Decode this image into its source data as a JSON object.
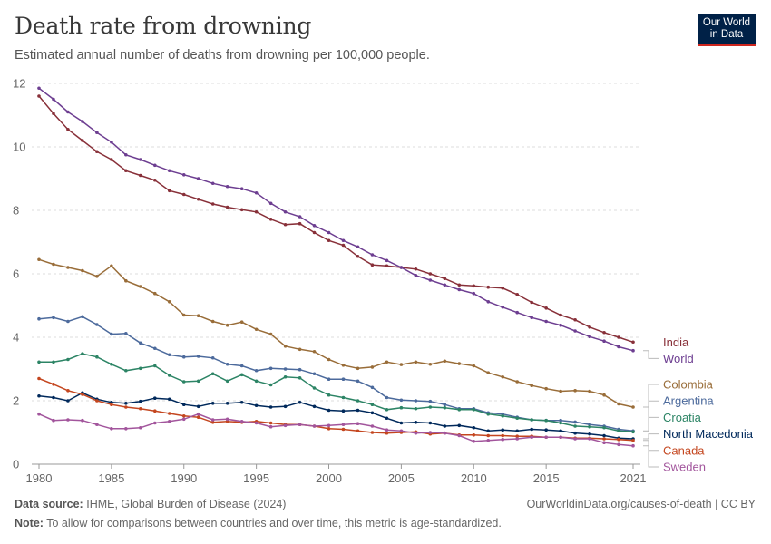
{
  "header": {
    "title": "Death rate from drowning",
    "subtitle": "Estimated annual number of deaths from drowning per 100,000 people.",
    "logo_line1": "Our World",
    "logo_line2": "in Data"
  },
  "footer": {
    "source_label": "Data source:",
    "source_text": "IHME, Global Burden of Disease (2024)",
    "url": "OurWorldinData.org/causes-of-death | CC BY",
    "note_label": "Note:",
    "note_text": "To allow for comparisons between countries and over time, this metric is age-standardized."
  },
  "chart_data": {
    "type": "line",
    "title": "Death rate from drowning",
    "subtitle": "Estimated annual number of deaths from drowning per 100,000 people.",
    "x": [
      1980,
      1981,
      1982,
      1983,
      1984,
      1985,
      1986,
      1987,
      1988,
      1989,
      1990,
      1991,
      1992,
      1993,
      1994,
      1995,
      1996,
      1997,
      1998,
      1999,
      2000,
      2001,
      2002,
      2003,
      2004,
      2005,
      2006,
      2007,
      2008,
      2009,
      2010,
      2011,
      2012,
      2013,
      2014,
      2015,
      2016,
      2017,
      2018,
      2019,
      2020,
      2021
    ],
    "xlim": [
      1979.5,
      2021.5
    ],
    "xticks": [
      1980,
      1985,
      1990,
      1995,
      2000,
      2005,
      2010,
      2015,
      2021
    ],
    "ylim": [
      0,
      12
    ],
    "yticks": [
      0,
      2,
      4,
      6,
      8,
      10,
      12
    ],
    "grid": "horizontal dashed",
    "legend": "right, labels at line ends",
    "series": [
      {
        "name": "India",
        "color": "#883039",
        "values": [
          11.6,
          11.05,
          10.55,
          10.2,
          9.85,
          9.6,
          9.25,
          9.1,
          8.95,
          8.62,
          8.5,
          8.35,
          8.2,
          8.1,
          8.02,
          7.95,
          7.72,
          7.55,
          7.58,
          7.3,
          7.05,
          6.9,
          6.55,
          6.28,
          6.25,
          6.2,
          6.15,
          6.0,
          5.85,
          5.65,
          5.62,
          5.58,
          5.55,
          5.35,
          5.1,
          4.92,
          4.7,
          4.55,
          4.32,
          4.15,
          4.0,
          3.85
        ]
      },
      {
        "name": "World",
        "color": "#6d3e91",
        "values": [
          11.85,
          11.5,
          11.1,
          10.8,
          10.45,
          10.15,
          9.75,
          9.6,
          9.42,
          9.25,
          9.12,
          9.0,
          8.85,
          8.75,
          8.68,
          8.55,
          8.22,
          7.95,
          7.8,
          7.52,
          7.3,
          7.05,
          6.85,
          6.6,
          6.42,
          6.2,
          5.95,
          5.8,
          5.65,
          5.5,
          5.38,
          5.12,
          4.95,
          4.78,
          4.62,
          4.5,
          4.38,
          4.2,
          4.02,
          3.88,
          3.7,
          3.58
        ]
      },
      {
        "name": "Colombia",
        "color": "#996d39",
        "values": [
          6.45,
          6.3,
          6.2,
          6.1,
          5.92,
          6.25,
          5.78,
          5.6,
          5.38,
          5.12,
          4.7,
          4.68,
          4.5,
          4.38,
          4.48,
          4.25,
          4.1,
          3.72,
          3.62,
          3.55,
          3.3,
          3.12,
          3.02,
          3.06,
          3.22,
          3.14,
          3.22,
          3.15,
          3.25,
          3.17,
          3.1,
          2.88,
          2.75,
          2.6,
          2.48,
          2.38,
          2.3,
          2.32,
          2.3,
          2.18,
          1.9,
          1.8
        ]
      },
      {
        "name": "Argentina",
        "color": "#4c6a9c",
        "values": [
          4.58,
          4.62,
          4.5,
          4.65,
          4.4,
          4.1,
          4.12,
          3.82,
          3.65,
          3.45,
          3.38,
          3.4,
          3.35,
          3.15,
          3.1,
          2.95,
          3.02,
          3.0,
          2.98,
          2.85,
          2.68,
          2.68,
          2.62,
          2.42,
          2.1,
          2.02,
          2.0,
          1.98,
          1.88,
          1.75,
          1.75,
          1.62,
          1.58,
          1.48,
          1.4,
          1.38,
          1.38,
          1.33,
          1.25,
          1.2,
          1.1,
          1.05
        ]
      },
      {
        "name": "Croatia",
        "color": "#2c8465",
        "values": [
          3.22,
          3.22,
          3.3,
          3.48,
          3.38,
          3.15,
          2.95,
          3.02,
          3.1,
          2.8,
          2.6,
          2.62,
          2.85,
          2.62,
          2.82,
          2.62,
          2.5,
          2.75,
          2.72,
          2.4,
          2.18,
          2.1,
          2.0,
          1.88,
          1.72,
          1.78,
          1.75,
          1.8,
          1.78,
          1.72,
          1.72,
          1.58,
          1.52,
          1.45,
          1.4,
          1.38,
          1.3,
          1.2,
          1.18,
          1.15,
          1.05,
          1.02
        ]
      },
      {
        "name": "North Macedonia",
        "color": "#00295b",
        "values": [
          2.15,
          2.1,
          2.0,
          2.25,
          2.05,
          1.95,
          1.92,
          1.98,
          2.08,
          2.05,
          1.88,
          1.82,
          1.92,
          1.92,
          1.95,
          1.85,
          1.8,
          1.82,
          1.95,
          1.82,
          1.7,
          1.68,
          1.7,
          1.62,
          1.45,
          1.3,
          1.32,
          1.3,
          1.2,
          1.22,
          1.15,
          1.05,
          1.08,
          1.05,
          1.1,
          1.08,
          1.05,
          0.98,
          0.95,
          0.9,
          0.82,
          0.8
        ]
      },
      {
        "name": "Canada",
        "color": "#c15065",
        "display_color": "#c4461f",
        "values": [
          2.7,
          2.52,
          2.32,
          2.2,
          2.0,
          1.88,
          1.8,
          1.75,
          1.68,
          1.6,
          1.52,
          1.48,
          1.32,
          1.35,
          1.32,
          1.35,
          1.3,
          1.25,
          1.25,
          1.2,
          1.12,
          1.1,
          1.05,
          1.0,
          0.98,
          1.0,
          1.02,
          0.95,
          0.98,
          0.92,
          0.92,
          0.9,
          0.9,
          0.88,
          0.88,
          0.85,
          0.85,
          0.82,
          0.82,
          0.8,
          0.78,
          0.75
        ]
      },
      {
        "name": "Sweden",
        "color": "#a2559c",
        "values": [
          1.58,
          1.38,
          1.4,
          1.38,
          1.25,
          1.12,
          1.12,
          1.15,
          1.3,
          1.35,
          1.42,
          1.58,
          1.4,
          1.42,
          1.35,
          1.3,
          1.18,
          1.22,
          1.25,
          1.2,
          1.22,
          1.25,
          1.28,
          1.2,
          1.08,
          1.05,
          0.98,
          1.0,
          0.98,
          0.9,
          0.72,
          0.75,
          0.78,
          0.8,
          0.85,
          0.85,
          0.85,
          0.8,
          0.8,
          0.68,
          0.62,
          0.58
        ]
      }
    ]
  }
}
